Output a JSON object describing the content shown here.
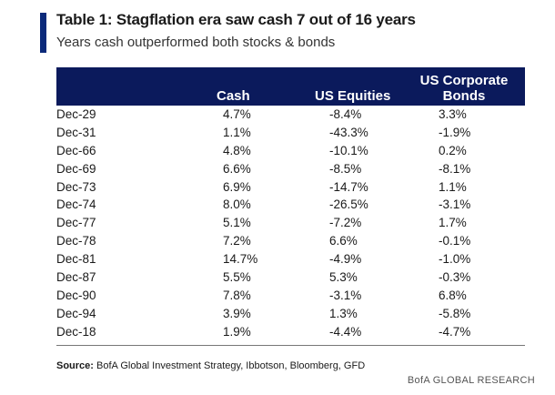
{
  "title": "Table 1: Stagflation era saw cash 7 out of 16 years",
  "subtitle": "Years cash outperformed both stocks & bonds",
  "source_label": "Source:",
  "source_text": "BofA Global Investment Strategy, Ibbotson, Bloomberg, GFD",
  "brand": "BofA GLOBAL RESEARCH",
  "colors": {
    "accent": "#0b2a7a",
    "header_bg": "#0b1a5c",
    "header_text": "#ffffff"
  },
  "chart_data": {
    "type": "table",
    "columns": [
      "",
      "Cash",
      "US Equities",
      "US Corporate Bonds"
    ],
    "column_lines": {
      "bond_line1": "US Corporate",
      "bond_line2": "Bonds"
    },
    "rows": [
      [
        "Dec-29",
        "4.7%",
        "-8.4%",
        "3.3%"
      ],
      [
        "Dec-31",
        "1.1%",
        "-43.3%",
        "-1.9%"
      ],
      [
        "Dec-66",
        "4.8%",
        "-10.1%",
        "0.2%"
      ],
      [
        "Dec-69",
        "6.6%",
        "-8.5%",
        "-8.1%"
      ],
      [
        "Dec-73",
        "6.9%",
        "-14.7%",
        "1.1%"
      ],
      [
        "Dec-74",
        "8.0%",
        "-26.5%",
        "-3.1%"
      ],
      [
        "Dec-77",
        "5.1%",
        "-7.2%",
        "1.7%"
      ],
      [
        "Dec-78",
        "7.2%",
        "6.6%",
        "-0.1%"
      ],
      [
        "Dec-81",
        "14.7%",
        "-4.9%",
        "-1.0%"
      ],
      [
        "Dec-87",
        "5.5%",
        "5.3%",
        "-0.3%"
      ],
      [
        "Dec-90",
        "7.8%",
        "-3.1%",
        "6.8%"
      ],
      [
        "Dec-94",
        "3.9%",
        "1.3%",
        "-5.8%"
      ],
      [
        "Dec-18",
        "1.9%",
        "-4.4%",
        "-4.7%"
      ]
    ]
  }
}
